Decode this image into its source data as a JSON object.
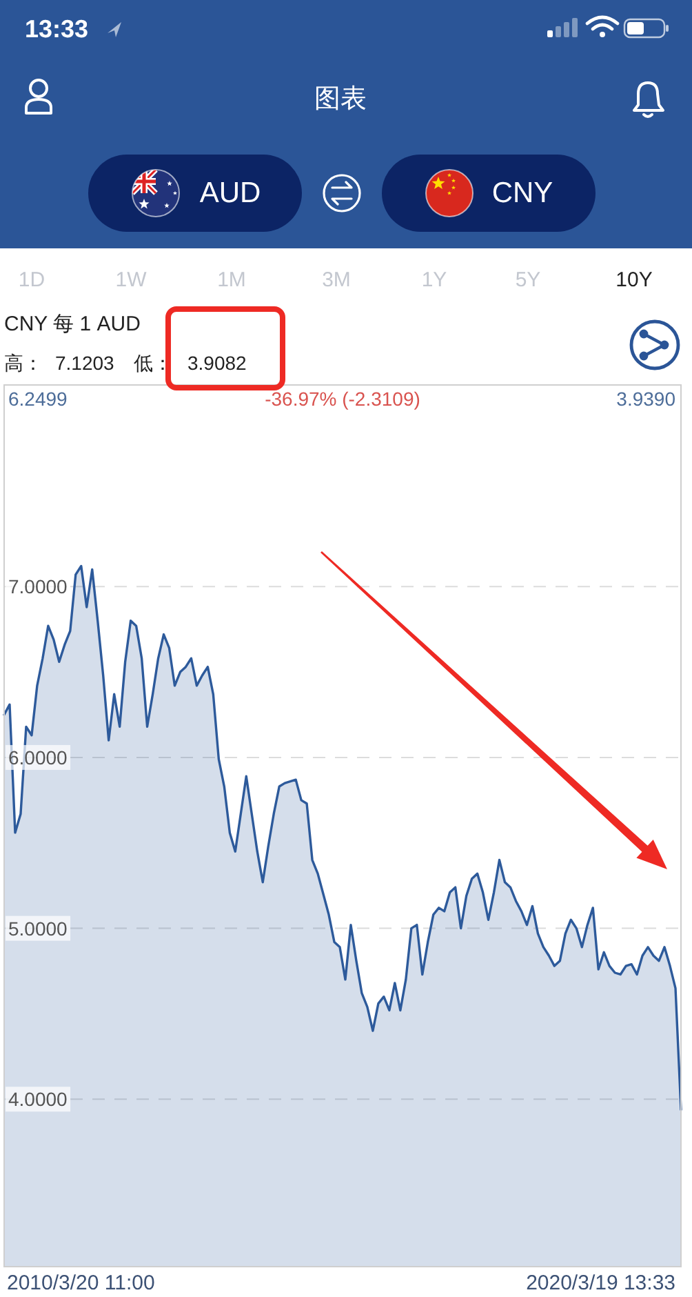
{
  "chart_data": {
    "type": "area",
    "title": "CNY 每 1 AUD",
    "color": "#2d5a9b",
    "categories": [
      null,
      null,
      null,
      null,
      null,
      null,
      null,
      null,
      null,
      null,
      null,
      null,
      null,
      null,
      null,
      null,
      null,
      null,
      null,
      null,
      null,
      null,
      null,
      null,
      null,
      null,
      null,
      null,
      null,
      null,
      null,
      null,
      null,
      null,
      null,
      null,
      null,
      null,
      null,
      null,
      null,
      null,
      null,
      null,
      null,
      null,
      null,
      null,
      null,
      null,
      null,
      null,
      null,
      null,
      null,
      null,
      null,
      null,
      null,
      null,
      null,
      null,
      null,
      null,
      null,
      null,
      null,
      null,
      null,
      null,
      null,
      null,
      null,
      null,
      null,
      null,
      null,
      null,
      null,
      null,
      null,
      null,
      null,
      null,
      null,
      null,
      null,
      null,
      null,
      null,
      null,
      null,
      null,
      null,
      null,
      null,
      null,
      null,
      null,
      null,
      null,
      null,
      null,
      null,
      null,
      null,
      null,
      null,
      null,
      null,
      null,
      null,
      null,
      null,
      null,
      null,
      null,
      null,
      null,
      null,
      null,
      null,
      null,
      null
    ],
    "values": [
      6.2499,
      6.31,
      5.56,
      5.67,
      6.18,
      6.13,
      6.42,
      6.58,
      6.77,
      6.69,
      6.56,
      6.66,
      6.74,
      7.07,
      7.1203,
      6.88,
      7.1,
      6.8,
      6.48,
      6.1,
      6.37,
      6.18,
      6.56,
      6.8,
      6.77,
      6.58,
      6.18,
      6.37,
      6.58,
      6.72,
      6.64,
      6.42,
      6.5,
      6.53,
      6.58,
      6.42,
      6.48,
      6.53,
      6.37,
      5.99,
      5.83,
      5.56,
      5.45,
      5.67,
      5.89,
      5.67,
      5.45,
      5.27,
      5.48,
      5.67,
      5.83,
      5.85,
      5.86,
      5.87,
      5.75,
      5.73,
      5.4,
      5.32,
      5.2,
      5.08,
      4.92,
      4.89,
      4.7,
      5.02,
      4.81,
      4.62,
      4.54,
      4.4,
      4.56,
      4.6,
      4.52,
      4.68,
      4.52,
      4.7,
      5.0,
      5.02,
      4.73,
      4.92,
      5.08,
      5.12,
      5.1,
      5.21,
      5.24,
      5.0,
      5.19,
      5.29,
      5.32,
      5.21,
      5.05,
      5.21,
      5.4,
      5.27,
      5.24,
      5.16,
      5.1,
      5.02,
      5.13,
      4.97,
      4.89,
      4.84,
      4.78,
      4.81,
      4.97,
      5.05,
      5.0,
      4.89,
      5.02,
      5.12,
      4.76,
      4.86,
      4.78,
      4.74,
      4.73,
      4.78,
      4.79,
      4.73,
      4.84,
      4.89,
      4.84,
      4.81,
      4.89,
      4.78,
      4.65,
      3.939
    ],
    "ylim": [
      3.02,
      8.18
    ],
    "yticks": [
      {
        "value": 4,
        "label": "4.0000"
      },
      {
        "value": 5,
        "label": "5.0000"
      },
      {
        "value": 6,
        "label": "6.0000"
      },
      {
        "value": 7,
        "label": "7.0000"
      }
    ],
    "grid": "y",
    "tick_labels": "y",
    "annotations": [
      "13:33",
      "图表",
      "AUD",
      "CNY",
      "1D",
      "1W",
      "1M",
      "3M",
      "1Y",
      "5Y",
      "10Y",
      "高：",
      "7.1203",
      "低：",
      "3.9082",
      "6.2499",
      "-36.97% (-2.3109)",
      "3.9390",
      "2010/3/20 11:00",
      "2020/3/19 13:33"
    ]
  }
}
